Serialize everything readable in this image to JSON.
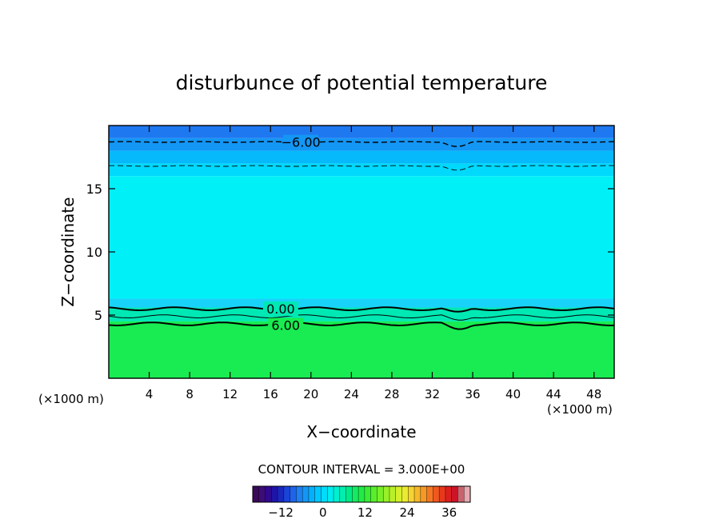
{
  "chart_data": {
    "type": "contour",
    "title": "disturbunce of potential temperature",
    "xlabel": "X−coordinate",
    "ylabel": "Z−coordinate",
    "x_unit_left": "(×1000 m)",
    "x_unit_right": "(×1000 m)",
    "xlim": [
      0,
      50
    ],
    "ylim": [
      0,
      20
    ],
    "x_ticks": [
      4,
      8,
      12,
      16,
      20,
      24,
      28,
      32,
      36,
      40,
      44,
      48
    ],
    "y_ticks": [
      5,
      10,
      15
    ],
    "contour_interval_text": "CONTOUR INTERVAL = 3.000E+00",
    "contour_labels": [
      {
        "text": "−6.00",
        "x": 19,
        "z": 18.7
      },
      {
        "text": "0.00",
        "x": 17,
        "z": 5.5
      },
      {
        "text": "6.00",
        "x": 17.5,
        "z": 4.2
      }
    ],
    "contour_levels": [
      {
        "value": -6,
        "z": 18.7,
        "style": "dashed"
      },
      {
        "value": -3,
        "z": 16.8,
        "style": "dashed"
      },
      {
        "value": 0,
        "z": 5.5,
        "style": "solid-bold"
      },
      {
        "value": 3,
        "z": 4.9,
        "style": "solid"
      },
      {
        "value": 6,
        "z": 4.3,
        "style": "solid-bold"
      }
    ],
    "fill_bands": [
      {
        "z_from": 19.0,
        "z_to": 20.0,
        "color": "#1e78f0"
      },
      {
        "z_from": 18.0,
        "z_to": 19.0,
        "color": "#1496f5"
      },
      {
        "z_from": 17.0,
        "z_to": 18.0,
        "color": "#05b9fa"
      },
      {
        "z_from": 16.0,
        "z_to": 17.0,
        "color": "#00d8fc"
      },
      {
        "z_from": 6.3,
        "z_to": 16.0,
        "color": "#00f0f8"
      },
      {
        "z_from": 5.6,
        "z_to": 6.3,
        "color": "#19d2fa"
      },
      {
        "z_from": 4.5,
        "z_to": 5.6,
        "color": "#00e8b4"
      },
      {
        "z_from": 0.0,
        "z_to": 4.5,
        "color": "#18ec52"
      }
    ],
    "colorbar": {
      "ticks": [
        -12,
        0,
        12,
        24,
        36
      ],
      "range": [
        -20,
        42
      ],
      "colors": [
        "#3a0a5a",
        "#3c0c78",
        "#2f0a8f",
        "#1e14a8",
        "#1a28c0",
        "#1a44d8",
        "#1e64ea",
        "#1e80f2",
        "#1496f5",
        "#05b0fa",
        "#00c8fc",
        "#00dcfa",
        "#00ecf0",
        "#00f0d0",
        "#00eeae",
        "#00ea88",
        "#14ea62",
        "#22ea46",
        "#3aec34",
        "#58ee2c",
        "#78f028",
        "#98f028",
        "#b8f028",
        "#d4f02c",
        "#eaea30",
        "#f4d430",
        "#f6b82c",
        "#f69828",
        "#f47824",
        "#f05820",
        "#e8381c",
        "#dc1e1e",
        "#cc1428",
        "#c8646e",
        "#e8a8b0"
      ]
    }
  }
}
